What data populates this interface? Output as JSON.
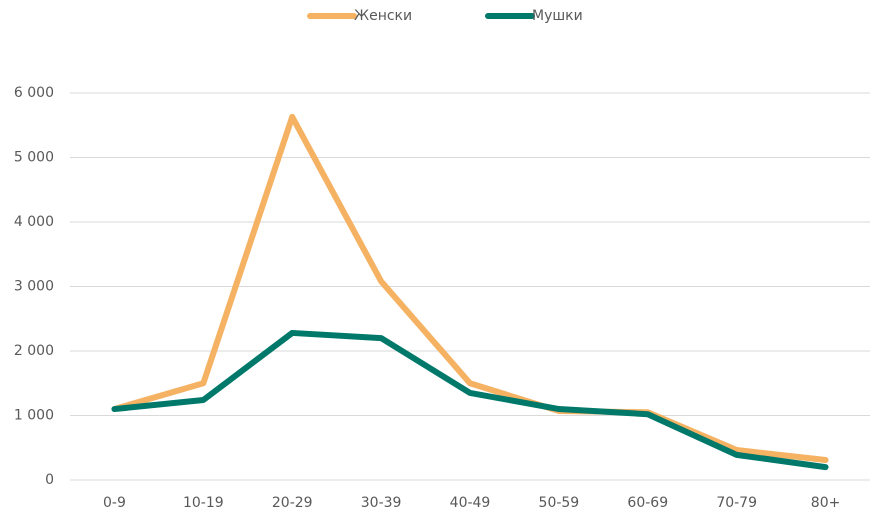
{
  "chart_data": {
    "type": "line",
    "categories": [
      "0-9",
      "10-19",
      "20-29",
      "30-39",
      "40-49",
      "50-59",
      "60-69",
      "70-79",
      "80+"
    ],
    "series": [
      {
        "name": "Женски",
        "color": "#f5b263",
        "values": [
          1100,
          1500,
          5630,
          3080,
          1500,
          1070,
          1050,
          465,
          310
        ]
      },
      {
        "name": "Мушки",
        "color": "#00786a",
        "values": [
          1100,
          1240,
          2280,
          2200,
          1350,
          1100,
          1020,
          390,
          200
        ]
      }
    ],
    "ylim": [
      0,
      6000
    ],
    "yticks": [
      0,
      {
        "value": 1000,
        "label": "1 000"
      },
      {
        "value": 2000,
        "label": "2 000"
      },
      {
        "value": 3000,
        "label": "3 000"
      },
      {
        "value": 4000,
        "label": "4 000"
      },
      {
        "value": 5000,
        "label": "5 000"
      },
      {
        "value": 6000,
        "label": "6 000"
      }
    ],
    "grid": true,
    "legend": "top"
  }
}
